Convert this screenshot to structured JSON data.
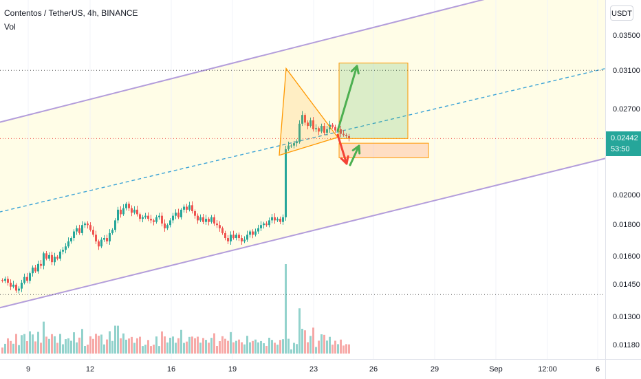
{
  "header": {
    "title": "Contentos / TetherUS, 4h, BINANCE",
    "volume_label": "Vol"
  },
  "price_axis": {
    "currency": "USDT",
    "ticks": [
      "0.03500",
      "0.03100",
      "0.02700",
      "0.02000",
      "0.01800",
      "0.01600",
      "0.01450",
      "0.01300",
      "0.01180"
    ],
    "last_price": "0.02442",
    "countdown": "53:50"
  },
  "time_axis": {
    "labels": [
      "9",
      "12",
      "16",
      "19",
      "23",
      "26",
      "29",
      "Sep",
      "12:00",
      "6"
    ]
  },
  "colors": {
    "up": "#26a69a",
    "down": "#ef5350",
    "channel": "#b39ddb",
    "channel_fill": "#fffde7",
    "midline": "#3ba3d6",
    "pennant": "#ff9800",
    "target_up": "#4caf50",
    "target_down": "#f44336"
  },
  "chart_data": {
    "type": "candlestick",
    "scale": "log",
    "candle_closes": [
      0.0148,
      0.0149,
      0.0147,
      0.0145,
      0.0146,
      0.0143,
      0.0144,
      0.0147,
      0.015,
      0.0148,
      0.0152,
      0.0155,
      0.0153,
      0.0157,
      0.0156,
      0.0163,
      0.016,
      0.0162,
      0.0158,
      0.0161,
      0.016,
      0.0164,
      0.0165,
      0.0167,
      0.017,
      0.0172,
      0.0176,
      0.0178,
      0.0175,
      0.018,
      0.0181,
      0.018,
      0.0177,
      0.0174,
      0.017,
      0.0167,
      0.0171,
      0.0172,
      0.017,
      0.0175,
      0.0177,
      0.0183,
      0.019,
      0.0187,
      0.0191,
      0.0194,
      0.0191,
      0.0188,
      0.019,
      0.0187,
      0.0184,
      0.0185,
      0.0186,
      0.0184,
      0.0183,
      0.0182,
      0.0185,
      0.0186,
      0.0181,
      0.0178,
      0.018,
      0.0183,
      0.0186,
      0.0188,
      0.0185,
      0.019,
      0.0192,
      0.019,
      0.0193,
      0.0189,
      0.0186,
      0.0183,
      0.0185,
      0.0182,
      0.0184,
      0.0182,
      0.0185,
      0.0181,
      0.018,
      0.0178,
      0.0175,
      0.0172,
      0.017,
      0.0174,
      0.0172,
      0.0174,
      0.0172,
      0.017,
      0.0171,
      0.0174,
      0.0176,
      0.0174,
      0.0176,
      0.0178,
      0.018,
      0.0181,
      0.018,
      0.0183,
      0.0185,
      0.0183,
      0.0184,
      0.0182,
      0.0185,
      0.0235,
      0.0238,
      0.0238,
      0.024,
      0.0241,
      0.0257,
      0.0265,
      0.0258,
      0.0255,
      0.026,
      0.0252,
      0.0253,
      0.025,
      0.0255,
      0.0249,
      0.0252,
      0.0256,
      0.0254,
      0.0251,
      0.0252,
      0.0248,
      0.0247,
      0.0246,
      0.0244
    ],
    "annotations": {
      "channel_upper": [
        [
          "9",
          0.0265
        ],
        [
          "6",
          0.044
        ]
      ],
      "channel_lower": [
        [
          "9",
          0.0138
        ],
        [
          "6",
          0.0226
        ]
      ],
      "channel_mid": [
        [
          "9",
          0.0193
        ],
        [
          "6",
          0.031
        ]
      ],
      "horizontal_levels": [
        0.031,
        0.0244,
        0.0141
      ],
      "long_target_zone": [
        0.0244,
        0.0318
      ],
      "short_target_zone": [
        0.0228,
        0.024
      ]
    }
  }
}
